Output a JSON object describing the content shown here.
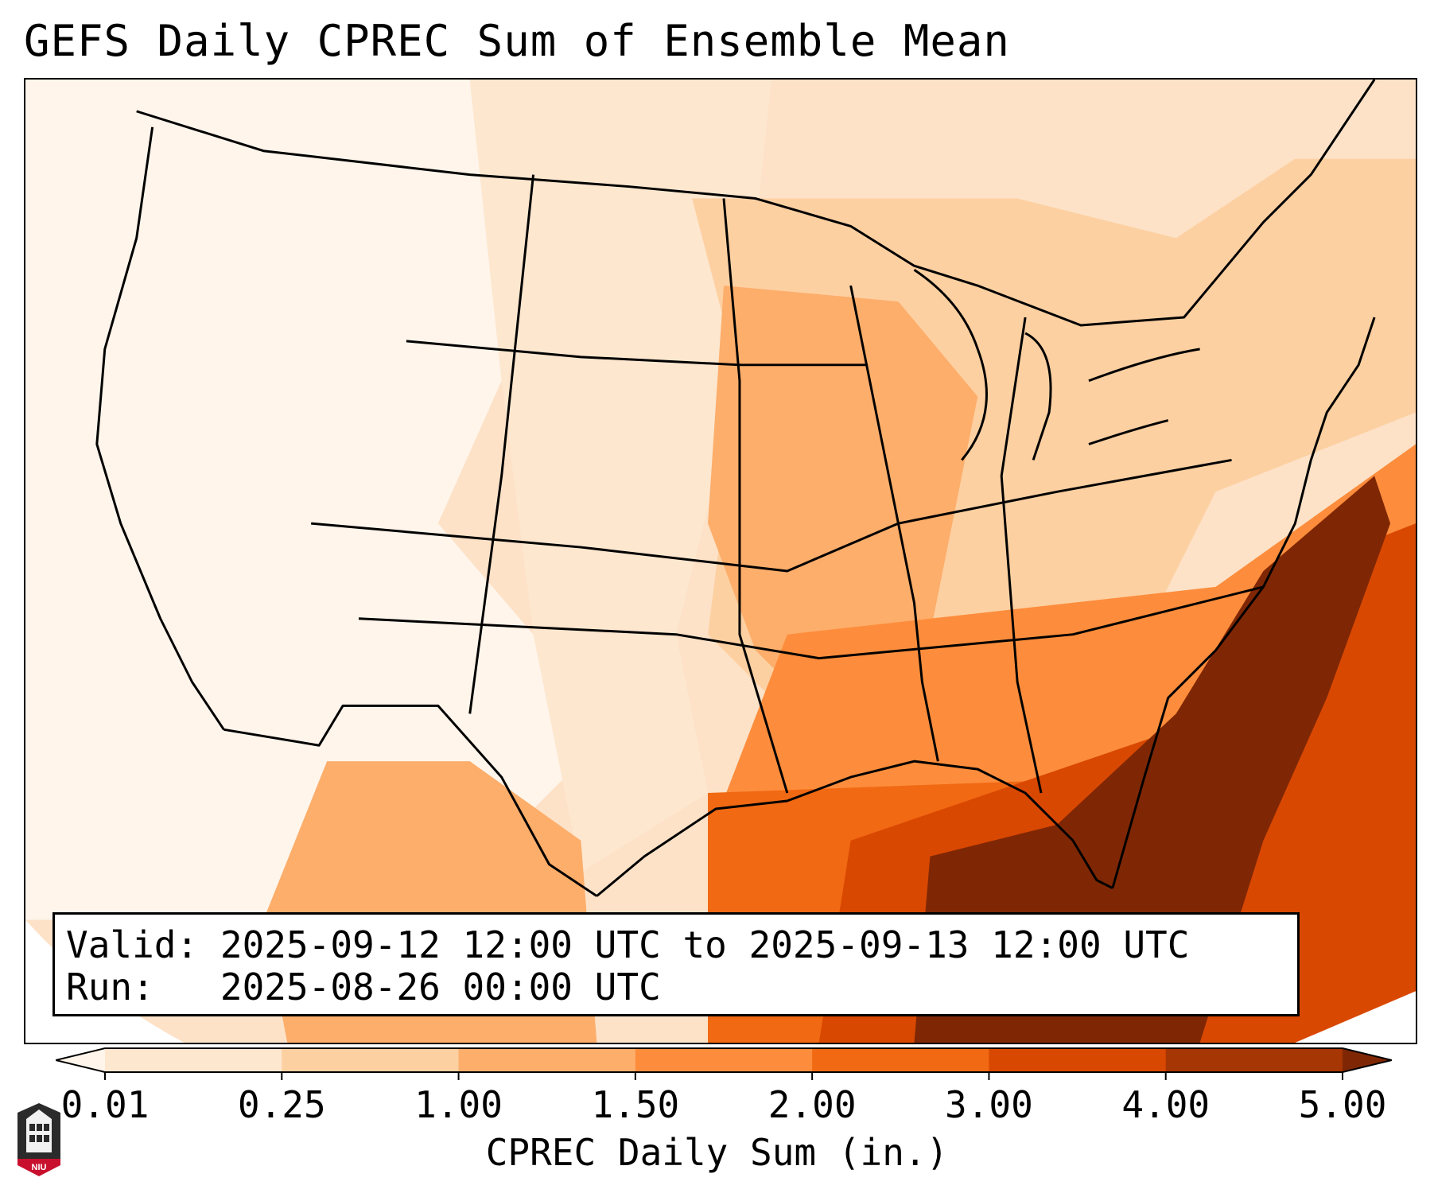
{
  "title": "GEFS Daily CPREC Sum of Ensemble Mean",
  "info": {
    "valid_label": "Valid:",
    "valid_value": "2025-09-12 12:00 UTC to 2025-09-13 12:00 UTC",
    "run_label": "Run:",
    "run_value": "2025-08-26 00:00 UTC"
  },
  "colorbar": {
    "label": "CPREC Daily Sum (in.)",
    "ticks": [
      "0.01",
      "0.25",
      "1.00",
      "1.50",
      "2.00",
      "3.00",
      "4.00",
      "5.00"
    ],
    "colors": [
      "#fff5eb",
      "#fde7cf",
      "#fdd0a2",
      "#fdae6b",
      "#fd8d3c",
      "#f16913",
      "#d94801",
      "#a63603",
      "#7f2704"
    ],
    "extend": "both"
  },
  "map": {
    "region": "Contiguous United States",
    "projection": "Lambert conformal",
    "colors": {
      "ocean_background": "#fde2c8",
      "land_light": "#fff5eb",
      "west_low": "#fde7cf",
      "plains": "#fdd0a2",
      "midwest": "#fdae6b",
      "southeast": "#fd8d3c",
      "gulf": "#f16913",
      "gulf_heavy": "#d94801",
      "atlantic_max": "#7f2704",
      "borders": "#000000"
    }
  },
  "logo": {
    "text": "NIU",
    "icon": "niu-shield-logo-icon"
  }
}
